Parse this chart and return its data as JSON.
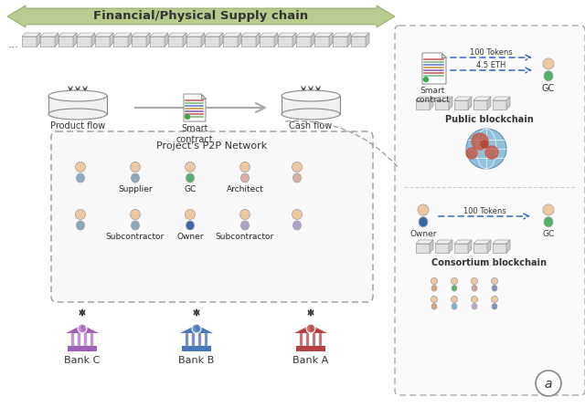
{
  "title": "Financial/Physical Supply chain",
  "bg_color": "#ffffff",
  "arrow_color": "#b8cc90",
  "dashed_box_color": "#aaaaaa",
  "bank_colors": {
    "Bank C": "#a060b8",
    "Bank B": "#4878b8",
    "Bank A": "#b84040"
  },
  "bank_light_colors": {
    "Bank C": "#c890d8",
    "Bank B": "#7090c8",
    "Bank A": "#c87070"
  },
  "bank_mid_colors": {
    "Bank C": "#b870cc",
    "Bank B": "#5888cc",
    "Bank A": "#c85050"
  },
  "p2p_label": "Project's P2P Network",
  "right_panel_blockchain1": "Public blockchain",
  "right_panel_blockchain2": "Consortium blockchain",
  "product_flow_label": "Product flow",
  "cash_flow_label": "Cash flow",
  "smart_contract_label": "Smart\ncontract",
  "dashed_arrow_color": "#3366bb",
  "cube_color": "#e0e0e0",
  "cube_edge_color": "#888888",
  "cube_top_color": "#f0f0f0",
  "cube_right_color": "#c8c8c8"
}
